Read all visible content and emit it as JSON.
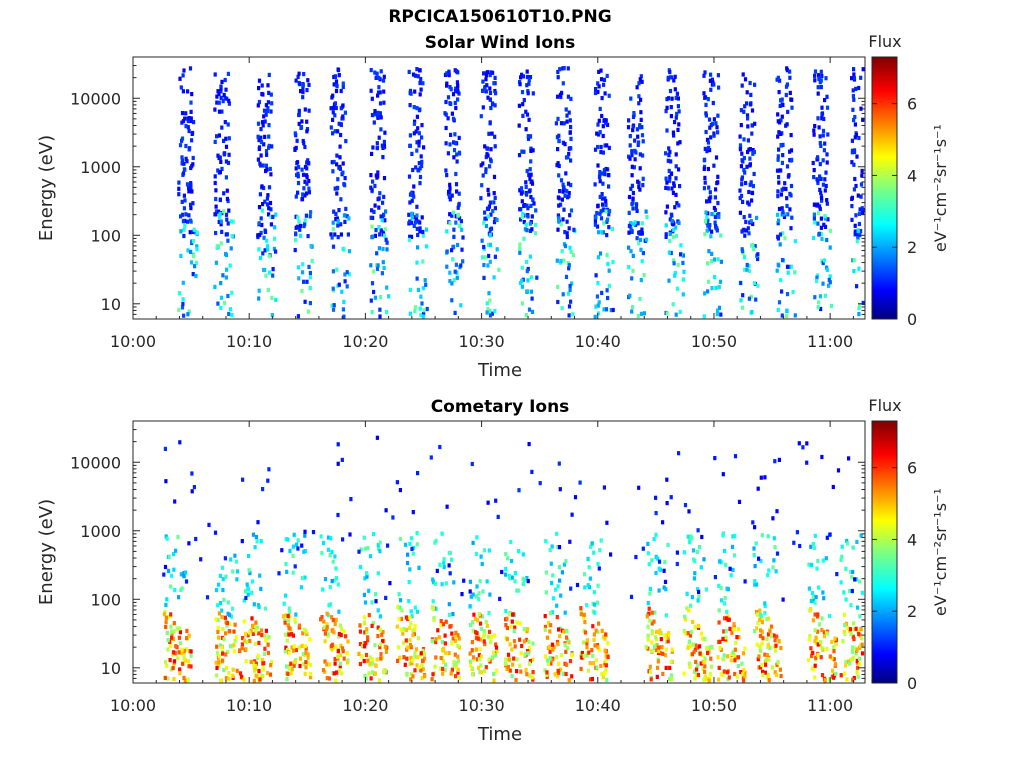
{
  "figure": {
    "title": "RPCICA150610T10.PNG"
  },
  "colormap": "jet",
  "chart_data": [
    {
      "type": "heatmap",
      "title": "Solar Wind Ions",
      "xlabel": "Time",
      "ylabel": "Energy (eV)",
      "x_ticks": [
        "10:00",
        "10:10",
        "10:20",
        "10:30",
        "10:40",
        "10:50",
        "11:00"
      ],
      "x_tick_minutes": [
        0,
        10,
        20,
        30,
        40,
        50,
        60
      ],
      "xlim_minutes": [
        0,
        63
      ],
      "y_scale": "log",
      "ylim": [
        6,
        40000
      ],
      "y_ticks": [
        "10",
        "100",
        "1000",
        "10000"
      ],
      "y_tick_values": [
        10,
        100,
        1000,
        10000
      ],
      "colorbar": {
        "title": "Flux",
        "label": "eV⁻¹cm⁻²sr⁻¹s⁻¹",
        "range": [
          0,
          7.3
        ],
        "ticks": [
          "0",
          "2",
          "4",
          "6"
        ]
      },
      "scan_start_minutes": [
        3.8,
        6.9,
        10.6,
        13.8,
        16.9,
        20.3,
        23.6,
        26.7,
        29.8,
        33.1,
        36.3,
        39.6,
        42.5,
        45.7,
        49.0,
        52.1,
        55.3,
        58.4,
        61.7
      ],
      "scan_width_minutes": 1.6,
      "energy_range_high": [
        100,
        30000
      ],
      "flux_range_high": [
        0.8,
        1.4
      ],
      "energy_range_low": [
        6,
        250
      ],
      "flux_range_low": [
        1.0,
        3.6
      ]
    },
    {
      "type": "heatmap",
      "title": "Cometary Ions",
      "xlabel": "Time",
      "ylabel": "Energy (eV)",
      "x_ticks": [
        "10:00",
        "10:10",
        "10:20",
        "10:30",
        "10:40",
        "10:50",
        "11:00"
      ],
      "x_tick_minutes": [
        0,
        10,
        20,
        30,
        40,
        50,
        60
      ],
      "xlim_minutes": [
        0,
        63
      ],
      "y_scale": "log",
      "ylim": [
        6,
        40000
      ],
      "y_ticks": [
        "10",
        "100",
        "1000",
        "10000"
      ],
      "y_tick_values": [
        10,
        100,
        1000,
        10000
      ],
      "colorbar": {
        "title": "Flux",
        "label": "eV⁻¹cm⁻²sr⁻¹s⁻¹",
        "range": [
          0,
          7.3
        ],
        "ticks": [
          "0",
          "2",
          "4",
          "6"
        ]
      },
      "scan_start_minutes": [
        2.5,
        7.0,
        9.4,
        12.8,
        16.0,
        19.3,
        22.6,
        25.6,
        28.8,
        31.9,
        35.3,
        38.4,
        44.0,
        47.3,
        50.2,
        53.3,
        58.0,
        60.8
      ],
      "scan_width_minutes": 2.4,
      "energy_range_high": [
        60,
        1000
      ],
      "flux_range_high": [
        2.0,
        3.5
      ],
      "energy_range_low": [
        6,
        80
      ],
      "flux_range_low": [
        3.5,
        6.5
      ],
      "sparse_energy_range": [
        100,
        25000
      ],
      "sparse_flux": [
        0.8,
        1.3
      ]
    }
  ]
}
